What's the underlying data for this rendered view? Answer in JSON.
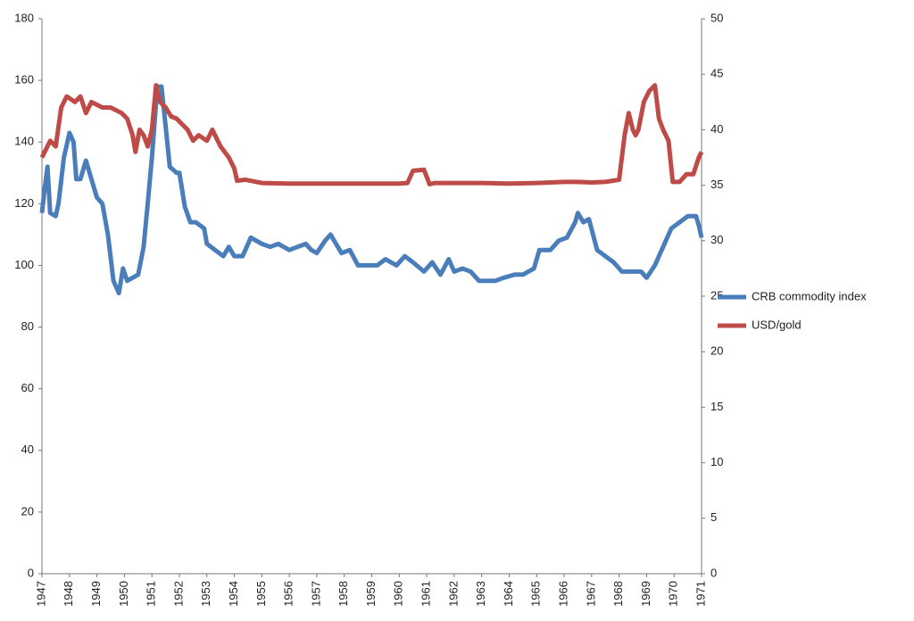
{
  "chart_data": {
    "type": "line",
    "x": [],
    "xlim": [
      1947,
      1971
    ],
    "xticks": [
      1947,
      1948,
      1949,
      1950,
      1951,
      1952,
      1953,
      1954,
      1955,
      1956,
      1957,
      1958,
      1959,
      1960,
      1961,
      1962,
      1963,
      1964,
      1965,
      1966,
      1967,
      1968,
      1969,
      1970,
      1971
    ],
    "ylim": [
      0,
      180
    ],
    "yticks": [
      0,
      20,
      40,
      60,
      80,
      100,
      120,
      140,
      160,
      180
    ],
    "y2lim": [
      0,
      50
    ],
    "y2ticks": [
      0,
      5,
      10,
      15,
      20,
      25,
      30,
      35,
      40,
      45,
      50
    ],
    "legend": "right",
    "grid": false,
    "series": [
      {
        "name": "CRB commodity index",
        "color": "#4a7ebb",
        "axis": "y",
        "x": [
          1947.0,
          1947.1,
          1947.2,
          1947.3,
          1947.5,
          1947.6,
          1947.8,
          1948.0,
          1948.15,
          1948.25,
          1948.4,
          1948.6,
          1948.8,
          1949.0,
          1949.2,
          1949.4,
          1949.6,
          1949.8,
          1949.95,
          1950.1,
          1950.3,
          1950.5,
          1950.7,
          1950.85,
          1951.0,
          1951.2,
          1951.35,
          1951.5,
          1951.65,
          1951.9,
          1952.0,
          1952.2,
          1952.4,
          1952.6,
          1952.9,
          1953.0,
          1953.3,
          1953.6,
          1953.8,
          1954.0,
          1954.3,
          1954.6,
          1955.0,
          1955.3,
          1955.6,
          1956.0,
          1956.3,
          1956.6,
          1956.8,
          1957.0,
          1957.3,
          1957.5,
          1957.9,
          1958.2,
          1958.5,
          1958.9,
          1959.2,
          1959.5,
          1959.9,
          1960.2,
          1960.5,
          1960.9,
          1961.2,
          1961.5,
          1961.8,
          1962.0,
          1962.3,
          1962.6,
          1962.9,
          1963.2,
          1963.5,
          1963.8,
          1964.2,
          1964.5,
          1964.9,
          1965.1,
          1965.5,
          1965.8,
          1966.1,
          1966.4,
          1966.5,
          1966.7,
          1966.9,
          1967.2,
          1967.5,
          1967.8,
          1968.1,
          1968.4,
          1968.8,
          1969.0,
          1969.3,
          1969.6,
          1969.9,
          1970.2,
          1970.5,
          1970.8,
          1970.9,
          1971.0
        ],
        "values": [
          117,
          125,
          132,
          117,
          116,
          120,
          135,
          143,
          140,
          128,
          128,
          134,
          128,
          122,
          120,
          110,
          95,
          91,
          99,
          95,
          96,
          97,
          106,
          120,
          135,
          158,
          158,
          145,
          132,
          130,
          130,
          119,
          114,
          114,
          112,
          107,
          105,
          103,
          106,
          103,
          103,
          109,
          107,
          106,
          107,
          105,
          106,
          107,
          105,
          104,
          108,
          110,
          104,
          105,
          100,
          100,
          100,
          102,
          100,
          103,
          101,
          98,
          101,
          97,
          102,
          98,
          99,
          98,
          95,
          95,
          95,
          96,
          97,
          97,
          99,
          105,
          105,
          108,
          109,
          114,
          117,
          114,
          115,
          105,
          103,
          101,
          98,
          98,
          98,
          96,
          100,
          106,
          112,
          114,
          116,
          116,
          113,
          109
        ]
      },
      {
        "name": "USD/gold",
        "color": "#be4b48",
        "axis": "y2",
        "x": [
          1947.0,
          1947.3,
          1947.5,
          1947.7,
          1947.9,
          1948.2,
          1948.4,
          1948.6,
          1948.8,
          1949.2,
          1949.5,
          1949.9,
          1950.1,
          1950.3,
          1950.4,
          1950.55,
          1950.7,
          1950.85,
          1951.0,
          1951.15,
          1951.3,
          1951.5,
          1951.7,
          1951.9,
          1952.1,
          1952.3,
          1952.5,
          1952.7,
          1953.0,
          1953.2,
          1953.5,
          1953.8,
          1954.0,
          1954.1,
          1954.4,
          1955.0,
          1956.0,
          1958.0,
          1960.0,
          1960.3,
          1960.5,
          1960.9,
          1961.1,
          1961.3,
          1962.0,
          1963.0,
          1964.0,
          1965.0,
          1966.0,
          1966.5,
          1967.0,
          1967.5,
          1968.0,
          1968.2,
          1968.35,
          1968.5,
          1968.6,
          1968.7,
          1968.9,
          1969.1,
          1969.3,
          1969.45,
          1969.6,
          1969.8,
          1969.95,
          1970.2,
          1970.45,
          1970.7,
          1970.9,
          1971.0
        ],
        "values": [
          37.5,
          39,
          38.5,
          42,
          43,
          42.5,
          43,
          41.5,
          42.5,
          42,
          42,
          41.5,
          41,
          39.5,
          38,
          40,
          39.5,
          38.5,
          40,
          44,
          42.5,
          42,
          41.2,
          41,
          40.5,
          40,
          39,
          39.5,
          39,
          40,
          38.5,
          37.5,
          36.5,
          35.4,
          35.5,
          35.2,
          35.15,
          35.15,
          35.15,
          35.2,
          36.3,
          36.4,
          35.1,
          35.2,
          35.2,
          35.2,
          35.15,
          35.2,
          35.3,
          35.3,
          35.25,
          35.3,
          35.5,
          39.5,
          41.5,
          40,
          39.5,
          40,
          42.5,
          43.5,
          44,
          41,
          40,
          39,
          35.3,
          35.3,
          36,
          36,
          37.5,
          38
        ]
      }
    ]
  }
}
